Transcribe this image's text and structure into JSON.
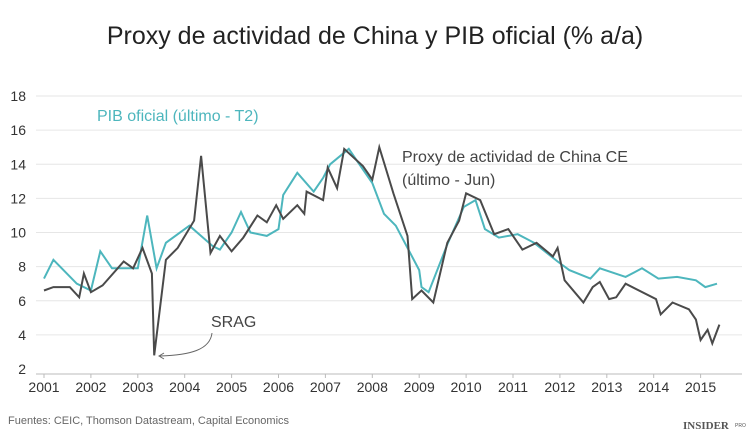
{
  "chart_data": {
    "type": "line",
    "title": "Proxy de actividad de China y PIB oficial (% a/a)",
    "xlabel": "",
    "ylabel": "",
    "ylim": [
      2,
      18
    ],
    "xlim": [
      2000.8,
      2015.9
    ],
    "grid": true,
    "yticks": [
      "2",
      "4",
      "6",
      "8",
      "10",
      "12",
      "14",
      "16",
      "18"
    ],
    "xticks": [
      "2001",
      "2002",
      "2003",
      "2004",
      "2005",
      "2006",
      "2007",
      "2008",
      "2009",
      "2010",
      "2011",
      "2012",
      "2013",
      "2014",
      "2015"
    ],
    "series": [
      {
        "name": "PIB oficial (último - T2)",
        "color": "#4db6bd",
        "points": [
          [
            2001.0,
            7.3
          ],
          [
            2001.2,
            8.4
          ],
          [
            2001.7,
            7.0
          ],
          [
            2002.0,
            6.6
          ],
          [
            2002.2,
            8.9
          ],
          [
            2002.45,
            7.9
          ],
          [
            2003.0,
            7.9
          ],
          [
            2003.2,
            11.0
          ],
          [
            2003.4,
            7.9
          ],
          [
            2003.6,
            9.4
          ],
          [
            2004.1,
            10.4
          ],
          [
            2004.6,
            9.2
          ],
          [
            2004.75,
            9.0
          ],
          [
            2005.0,
            10.0
          ],
          [
            2005.2,
            11.2
          ],
          [
            2005.4,
            10.0
          ],
          [
            2005.75,
            9.8
          ],
          [
            2006.0,
            10.2
          ],
          [
            2006.1,
            12.2
          ],
          [
            2006.4,
            13.5
          ],
          [
            2006.75,
            12.4
          ],
          [
            2006.95,
            13.2
          ],
          [
            2007.1,
            14.0
          ],
          [
            2007.5,
            14.9
          ],
          [
            2007.8,
            13.7
          ],
          [
            2008.0,
            12.9
          ],
          [
            2008.25,
            11.1
          ],
          [
            2008.5,
            10.4
          ],
          [
            2009.0,
            7.8
          ],
          [
            2009.05,
            6.8
          ],
          [
            2009.2,
            6.5
          ],
          [
            2009.6,
            9.3
          ],
          [
            2009.95,
            11.5
          ],
          [
            2010.2,
            11.9
          ],
          [
            2010.4,
            10.2
          ],
          [
            2010.7,
            9.7
          ],
          [
            2011.1,
            9.9
          ],
          [
            2011.45,
            9.4
          ],
          [
            2011.95,
            8.3
          ],
          [
            2012.2,
            7.8
          ],
          [
            2012.65,
            7.3
          ],
          [
            2012.85,
            7.9
          ],
          [
            2013.4,
            7.4
          ],
          [
            2013.75,
            7.9
          ],
          [
            2014.1,
            7.3
          ],
          [
            2014.5,
            7.4
          ],
          [
            2014.9,
            7.2
          ],
          [
            2015.1,
            6.8
          ],
          [
            2015.35,
            7.0
          ]
        ]
      },
      {
        "name": "Proxy de actividad de China CE (último - Jun)",
        "color": "#4a4a4a",
        "points": [
          [
            2001.0,
            6.6
          ],
          [
            2001.2,
            6.8
          ],
          [
            2001.55,
            6.8
          ],
          [
            2001.75,
            6.2
          ],
          [
            2001.85,
            7.6
          ],
          [
            2002.0,
            6.5
          ],
          [
            2002.25,
            6.9
          ],
          [
            2002.7,
            8.3
          ],
          [
            2002.9,
            7.9
          ],
          [
            2003.1,
            9.1
          ],
          [
            2003.3,
            7.6
          ],
          [
            2003.35,
            2.8
          ],
          [
            2003.6,
            8.4
          ],
          [
            2003.85,
            9.1
          ],
          [
            2004.2,
            10.7
          ],
          [
            2004.35,
            14.5
          ],
          [
            2004.55,
            8.8
          ],
          [
            2004.75,
            9.8
          ],
          [
            2005.0,
            8.9
          ],
          [
            2005.25,
            9.7
          ],
          [
            2005.55,
            11.0
          ],
          [
            2005.75,
            10.6
          ],
          [
            2005.95,
            11.6
          ],
          [
            2006.1,
            10.8
          ],
          [
            2006.4,
            11.6
          ],
          [
            2006.55,
            11.1
          ],
          [
            2006.6,
            12.4
          ],
          [
            2006.95,
            11.9
          ],
          [
            2007.05,
            13.8
          ],
          [
            2007.25,
            12.6
          ],
          [
            2007.4,
            14.9
          ],
          [
            2007.8,
            13.9
          ],
          [
            2008.0,
            13.1
          ],
          [
            2008.15,
            15.0
          ],
          [
            2008.45,
            12.3
          ],
          [
            2008.75,
            9.8
          ],
          [
            2008.85,
            6.1
          ],
          [
            2009.05,
            6.6
          ],
          [
            2009.3,
            5.9
          ],
          [
            2009.6,
            9.4
          ],
          [
            2009.85,
            10.7
          ],
          [
            2010.0,
            12.3
          ],
          [
            2010.3,
            11.9
          ],
          [
            2010.6,
            9.9
          ],
          [
            2010.9,
            10.2
          ],
          [
            2011.2,
            9.0
          ],
          [
            2011.5,
            9.4
          ],
          [
            2011.85,
            8.6
          ],
          [
            2011.95,
            9.1
          ],
          [
            2012.1,
            7.2
          ],
          [
            2012.5,
            5.9
          ],
          [
            2012.7,
            6.8
          ],
          [
            2012.85,
            7.1
          ],
          [
            2013.05,
            6.1
          ],
          [
            2013.2,
            6.2
          ],
          [
            2013.4,
            7.0
          ],
          [
            2014.05,
            6.1
          ],
          [
            2014.15,
            5.2
          ],
          [
            2014.4,
            5.9
          ],
          [
            2014.75,
            5.5
          ],
          [
            2014.9,
            4.9
          ],
          [
            2015.0,
            3.7
          ],
          [
            2015.15,
            4.3
          ],
          [
            2015.25,
            3.5
          ],
          [
            2015.4,
            4.6
          ]
        ]
      }
    ],
    "labels": {
      "pib": "PIB oficial (último - T2)",
      "proxy_line1": "Proxy de actividad de China CE",
      "proxy_line2": "(último - Jun)"
    },
    "annotations": [
      {
        "text": "SRAG",
        "x": 2003.35,
        "y": 2.8
      }
    ]
  },
  "footer": {
    "source": "Fuentes: CEIC, Thomson Datastream, Capital Economics",
    "logo": "INSIDER",
    "logo_suffix": "PRO"
  }
}
